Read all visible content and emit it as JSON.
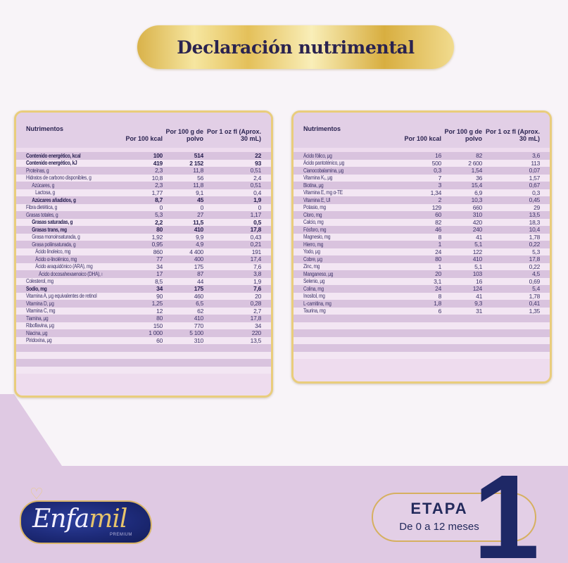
{
  "header": {
    "title": "Declaración nutrimental"
  },
  "columns": {
    "nutrient": "Nutrimentos",
    "per_100kcal": "Por 100 kcal",
    "per_100g": "Por 100 g de polvo",
    "per_1oz": "Por 1 oz fl (Aprox. 30 mL)"
  },
  "left_table": {
    "rows": [
      {
        "name": "Contenido energético, kcal",
        "v1": "100",
        "v2": "514",
        "v3": "22",
        "bold": true,
        "indent": 0
      },
      {
        "name": "Contenido energético, kJ",
        "v1": "419",
        "v2": "2 152",
        "v3": "93",
        "bold": true,
        "indent": 0
      },
      {
        "name": "Proteínas, g",
        "v1": "2,3",
        "v2": "11,8",
        "v3": "0,51",
        "bold": false,
        "indent": 0
      },
      {
        "name": "Hidratos de carbono disponibles, g",
        "v1": "10,8",
        "v2": "56",
        "v3": "2,4",
        "bold": false,
        "indent": 0
      },
      {
        "name": "Azúcares, g",
        "v1": "2,3",
        "v2": "11,8",
        "v3": "0,51",
        "bold": false,
        "indent": 1
      },
      {
        "name": "Lactosa, g",
        "v1": "1,77",
        "v2": "9,1",
        "v3": "0,4",
        "bold": false,
        "indent": 2
      },
      {
        "name": "Azúcares añadidos, g",
        "v1": "8,7",
        "v2": "45",
        "v3": "1,9",
        "bold": true,
        "indent": 1
      },
      {
        "name": "Fibra dietética, g",
        "v1": "0",
        "v2": "0",
        "v3": "0",
        "bold": false,
        "indent": 0
      },
      {
        "name": "Grasas totales, g",
        "v1": "5,3",
        "v2": "27",
        "v3": "1,17",
        "bold": false,
        "indent": 0
      },
      {
        "name": "Grasas saturadas, g",
        "v1": "2,2",
        "v2": "11,5",
        "v3": "0,5",
        "bold": true,
        "indent": 1
      },
      {
        "name": "Grasas trans, mg",
        "v1": "80",
        "v2": "410",
        "v3": "17,8",
        "bold": true,
        "indent": 1
      },
      {
        "name": "Grasa monoinsaturada, g",
        "v1": "1,92",
        "v2": "9,9",
        "v3": "0,43",
        "bold": false,
        "indent": 1
      },
      {
        "name": "Grasa poliinsaturada, g",
        "v1": "0,95",
        "v2": "4,9",
        "v3": "0,21",
        "bold": false,
        "indent": 1
      },
      {
        "name": "Ácido linoleico, mg",
        "v1": "860",
        "v2": "4 400",
        "v3": "191",
        "bold": false,
        "indent": 2
      },
      {
        "name": "Ácido α-linolénico, mg",
        "v1": "77",
        "v2": "400",
        "v3": "17,4",
        "bold": false,
        "indent": 2
      },
      {
        "name": "Ácido araquidónico (ARA), mg",
        "v1": "34",
        "v2": "175",
        "v3": "7,6",
        "bold": false,
        "indent": 2
      },
      {
        "name": "Ácido docosahexaenoico (DHA), mg",
        "v1": "17",
        "v2": "87",
        "v3": "3,8",
        "bold": false,
        "indent": 3
      },
      {
        "name": "Colesterol, mg",
        "v1": "8,5",
        "v2": "44",
        "v3": "1,9",
        "bold": false,
        "indent": 0
      },
      {
        "name": "Sodio, mg",
        "v1": "34",
        "v2": "175",
        "v3": "7,6",
        "bold": true,
        "indent": 0
      },
      {
        "name": "Vitamina A, μg equivalentes de retinol",
        "v1": "90",
        "v2": "460",
        "v3": "20",
        "bold": false,
        "indent": 0
      },
      {
        "name": "Vitamina D, μg",
        "v1": "1,25",
        "v2": "6,5",
        "v3": "0,28",
        "bold": false,
        "indent": 0
      },
      {
        "name": "Vitamina C, mg",
        "v1": "12",
        "v2": "62",
        "v3": "2,7",
        "bold": false,
        "indent": 0
      },
      {
        "name": "Tiamina, μg",
        "v1": "80",
        "v2": "410",
        "v3": "17,8",
        "bold": false,
        "indent": 0
      },
      {
        "name": "Riboflavina, μg",
        "v1": "150",
        "v2": "770",
        "v3": "34",
        "bold": false,
        "indent": 0
      },
      {
        "name": "Niacina, μg",
        "v1": "1 000",
        "v2": "5 100",
        "v3": "220",
        "bold": false,
        "indent": 0
      },
      {
        "name": "Piridoxina, μg",
        "v1": "60",
        "v2": "310",
        "v3": "13,5",
        "bold": false,
        "indent": 0
      }
    ]
  },
  "right_table": {
    "rows": [
      {
        "name": "Ácido fólico, μg",
        "v1": "16",
        "v2": "82",
        "v3": "3,6"
      },
      {
        "name": "Ácido pantoténico, μg",
        "v1": "500",
        "v2": "2 600",
        "v3": "113"
      },
      {
        "name": "Cianocobalamina, μg",
        "v1": "0,3",
        "v2": "1,54",
        "v3": "0,07"
      },
      {
        "name": "Vitamina K₁, μg",
        "v1": "7",
        "v2": "36",
        "v3": "1,57"
      },
      {
        "name": "Biotina, μg",
        "v1": "3",
        "v2": "15,4",
        "v3": "0,67"
      },
      {
        "name": "Vitamina E, mg α-TE",
        "v1": "1,34",
        "v2": "6,9",
        "v3": "0,3"
      },
      {
        "name": "Vitamina E, UI",
        "v1": "2",
        "v2": "10,3",
        "v3": "0,45"
      },
      {
        "name": "Potasio, mg",
        "v1": "129",
        "v2": "660",
        "v3": "29"
      },
      {
        "name": "Cloro, mg",
        "v1": "60",
        "v2": "310",
        "v3": "13,5"
      },
      {
        "name": "Calcio, mg",
        "v1": "82",
        "v2": "420",
        "v3": "18,3"
      },
      {
        "name": "Fósforo, mg",
        "v1": "46",
        "v2": "240",
        "v3": "10,4"
      },
      {
        "name": "Magnesio, mg",
        "v1": "8",
        "v2": "41",
        "v3": "1,78"
      },
      {
        "name": "Hierro, mg",
        "v1": "1",
        "v2": "5,1",
        "v3": "0,22"
      },
      {
        "name": "Yodo, μg",
        "v1": "24",
        "v2": "122",
        "v3": "5,3"
      },
      {
        "name": "Cobre, μg",
        "v1": "80",
        "v2": "410",
        "v3": "17,8"
      },
      {
        "name": "Zinc, mg",
        "v1": "1",
        "v2": "5,1",
        "v3": "0,22"
      },
      {
        "name": "Manganeso, μg",
        "v1": "20",
        "v2": "103",
        "v3": "4,5"
      },
      {
        "name": "Selenio, μg",
        "v1": "3,1",
        "v2": "16",
        "v3": "0,69"
      },
      {
        "name": "Colina, mg",
        "v1": "24",
        "v2": "124",
        "v3": "5,4"
      },
      {
        "name": "Inositol, mg",
        "v1": "8",
        "v2": "41",
        "v3": "1,78"
      },
      {
        "name": "L-carnitina, mg",
        "v1": "1,8",
        "v2": "9,3",
        "v3": "0,41"
      },
      {
        "name": "Taurina, mg",
        "v1": "6",
        "v2": "31",
        "v3": "1,35"
      }
    ]
  },
  "brand": {
    "logo_main": "Enfa",
    "logo_accent": "mil",
    "logo_sub": "PREMIUM"
  },
  "stage": {
    "label": "ETAPA",
    "range": "De 0 a 12 meses",
    "number": "1"
  },
  "colors": {
    "gold": "#e9cd7c",
    "navy": "#1e2866",
    "lilac": "#dfc9e3",
    "title_text": "#2a2350"
  }
}
